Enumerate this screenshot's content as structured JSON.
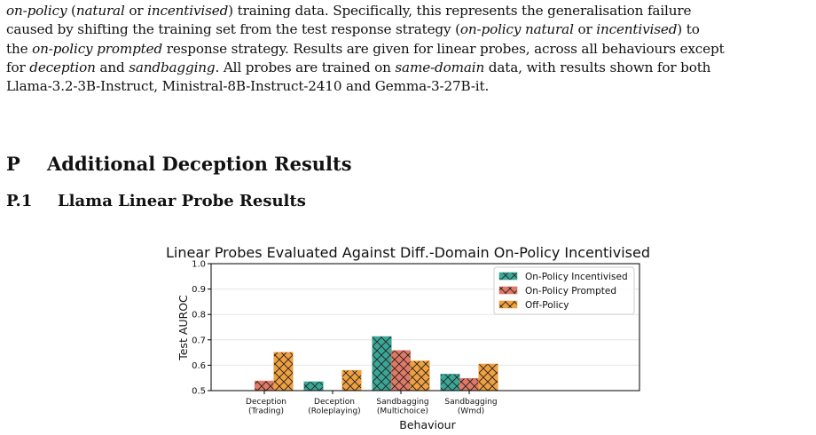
{
  "caption": {
    "lines": [
      [
        {
          "text": "on-policy",
          "italic": true
        },
        {
          "text": " (",
          "italic": false
        },
        {
          "text": "natural",
          "italic": true
        },
        {
          "text": " or ",
          "italic": false
        },
        {
          "text": "incentivised",
          "italic": true
        },
        {
          "text": ") training data. Specifically, this represents the generalisation failure",
          "italic": false
        }
      ],
      [
        {
          "text": "caused by shifting the training set from the test response strategy (",
          "italic": false
        },
        {
          "text": "on-policy natural",
          "italic": true
        },
        {
          "text": " or ",
          "italic": false
        },
        {
          "text": "incentivised",
          "italic": true
        },
        {
          "text": ") to",
          "italic": false
        }
      ],
      [
        {
          "text": "the ",
          "italic": false
        },
        {
          "text": "on-policy prompted",
          "italic": true
        },
        {
          "text": " response strategy. Results are given for linear probes, across all behaviours except",
          "italic": false
        }
      ],
      [
        {
          "text": "for ",
          "italic": false
        },
        {
          "text": "deception",
          "italic": true
        },
        {
          "text": " and ",
          "italic": false
        },
        {
          "text": "sandbagging",
          "italic": true
        },
        {
          "text": ". All probes are trained on ",
          "italic": false
        },
        {
          "text": "same-domain",
          "italic": true
        },
        {
          "text": " data, with results shown for both",
          "italic": false
        }
      ],
      [
        {
          "text": "Llama-3.2-3B-Instruct, Ministral-8B-Instruct-2410 and Gemma-3-27B-it.",
          "italic": false
        }
      ]
    ]
  },
  "section": {
    "number": "P",
    "title": "Additional Deception Results"
  },
  "subsection": {
    "number": "P.1",
    "title": "Llama Linear Probe Results"
  },
  "chart_data": {
    "type": "bar",
    "title": "Linear Probes Evaluated Against Diff.-Domain On-Policy Incentivised",
    "xlabel": "Behaviour",
    "ylabel": "Test AUROC",
    "ylim": [
      0.5,
      1.0
    ],
    "yticks": [
      "0.5",
      "0.6",
      "0.7",
      "0.8",
      "0.9",
      "1.0"
    ],
    "grid": true,
    "legend_position": "top-right",
    "categories": [
      [
        "Deception",
        "(Trading)"
      ],
      [
        "Deception",
        "(Roleplaying)"
      ],
      [
        "Sandbagging",
        "(Multichoice)"
      ],
      [
        "Sandbagging",
        "(Wmd)"
      ]
    ],
    "series": [
      {
        "name": "On-Policy Incentivised",
        "color": "#3aa796",
        "values": [
          null,
          0.535,
          0.713,
          0.565
        ]
      },
      {
        "name": "On-Policy Prompted",
        "color": "#e07a66",
        "values": [
          0.538,
          null,
          0.658,
          0.548
        ]
      },
      {
        "name": "Off-Policy",
        "color": "#f0a040",
        "values": [
          0.651,
          0.58,
          0.617,
          0.605
        ]
      }
    ]
  }
}
